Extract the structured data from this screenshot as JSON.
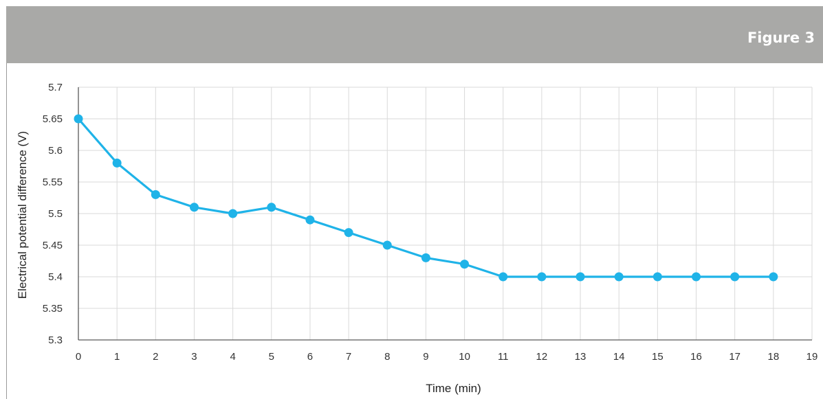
{
  "header": {
    "figure_label": "Figure 3"
  },
  "colors": {
    "header_bg": "#a9a9a7",
    "series_line": "#1fb3e8",
    "grid": "#d9d9d9",
    "axis": "#595959"
  },
  "chart_data": {
    "type": "line",
    "title": "",
    "xlabel": "Time (min)",
    "ylabel": "Electrical potential difference (V)",
    "xlim": [
      0,
      19
    ],
    "ylim": [
      5.3,
      5.7
    ],
    "x_ticks": [
      "0",
      "1",
      "2",
      "3",
      "4",
      "5",
      "6",
      "7",
      "8",
      "9",
      "10",
      "11",
      "12",
      "13",
      "14",
      "15",
      "16",
      "17",
      "18",
      "19"
    ],
    "y_ticks": [
      "5.3",
      "5.35",
      "5.4",
      "5.45",
      "5.5",
      "5.55",
      "5.6",
      "5.65",
      "5.7"
    ],
    "grid": true,
    "legend": "none",
    "series": [
      {
        "x": [
          0,
          1,
          2,
          3,
          4,
          5,
          6,
          7,
          8,
          9,
          10,
          11,
          12,
          13,
          14,
          15,
          16,
          17,
          18
        ],
        "values": [
          5.65,
          5.58,
          5.53,
          5.51,
          5.5,
          5.51,
          5.49,
          5.47,
          5.45,
          5.43,
          5.42,
          5.4,
          5.4,
          5.4,
          5.4,
          5.4,
          5.4,
          5.4,
          5.4
        ]
      }
    ]
  }
}
